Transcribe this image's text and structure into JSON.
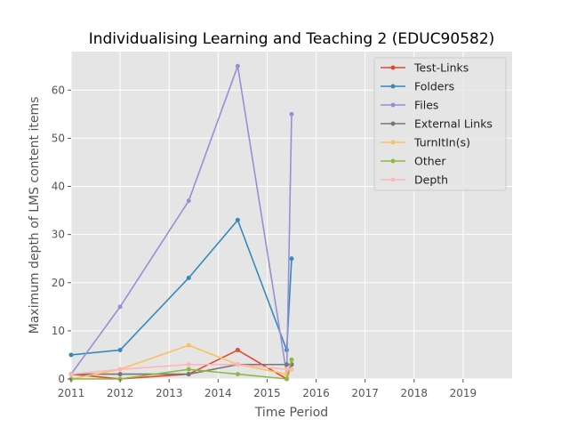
{
  "chart_data": {
    "type": "line",
    "title": "Individualising Learning and Teaching 2 (EDUC90582)",
    "xlabel": "Time Period",
    "ylabel": "Maximum depth of LMS content items",
    "xlim": [
      2011,
      2020
    ],
    "ylim": [
      0,
      68
    ],
    "xticks": [
      2011,
      2012,
      2013,
      2014,
      2015,
      2016,
      2017,
      2018,
      2019
    ],
    "yticks": [
      0,
      10,
      20,
      30,
      40,
      50,
      60
    ],
    "grid": true,
    "legend_position": "top-right",
    "series": [
      {
        "name": "Test-Links",
        "color": "#e24a33",
        "points": [
          [
            2011.0,
            1
          ],
          [
            2012.0,
            0
          ],
          [
            2013.4,
            1
          ],
          [
            2014.4,
            6
          ],
          [
            2015.4,
            0
          ],
          [
            2015.5,
            3
          ]
        ]
      },
      {
        "name": "Folders",
        "color": "#348abd",
        "points": [
          [
            2011.0,
            5
          ],
          [
            2012.0,
            6
          ],
          [
            2013.4,
            21
          ],
          [
            2014.4,
            33
          ],
          [
            2015.4,
            6
          ],
          [
            2015.5,
            25
          ]
        ]
      },
      {
        "name": "Files",
        "color": "#988ed5",
        "points": [
          [
            2011.0,
            1
          ],
          [
            2012.0,
            15
          ],
          [
            2013.4,
            37
          ],
          [
            2014.4,
            65
          ],
          [
            2015.4,
            1
          ],
          [
            2015.5,
            55
          ]
        ]
      },
      {
        "name": "External Links",
        "color": "#777777",
        "points": [
          [
            2011.0,
            1
          ],
          [
            2012.0,
            1
          ],
          [
            2013.4,
            1
          ],
          [
            2014.4,
            3
          ],
          [
            2015.4,
            3
          ],
          [
            2015.5,
            3
          ]
        ]
      },
      {
        "name": "TurnItIn(s)",
        "color": "#fbc15e",
        "points": [
          [
            2011.0,
            0
          ],
          [
            2012.0,
            2
          ],
          [
            2013.4,
            7
          ],
          [
            2014.4,
            3
          ],
          [
            2015.4,
            1
          ],
          [
            2015.5,
            2
          ]
        ]
      },
      {
        "name": "Other",
        "color": "#8eba42",
        "points": [
          [
            2011.0,
            0
          ],
          [
            2012.0,
            0
          ],
          [
            2013.4,
            2
          ],
          [
            2014.4,
            1
          ],
          [
            2015.4,
            0
          ],
          [
            2015.5,
            4
          ]
        ]
      },
      {
        "name": "Depth",
        "color": "#ffb5b8",
        "points": [
          [
            2011.0,
            1
          ],
          [
            2012.0,
            2
          ],
          [
            2013.4,
            3
          ],
          [
            2014.4,
            3
          ],
          [
            2015.4,
            2
          ],
          [
            2015.5,
            2
          ]
        ]
      }
    ]
  }
}
